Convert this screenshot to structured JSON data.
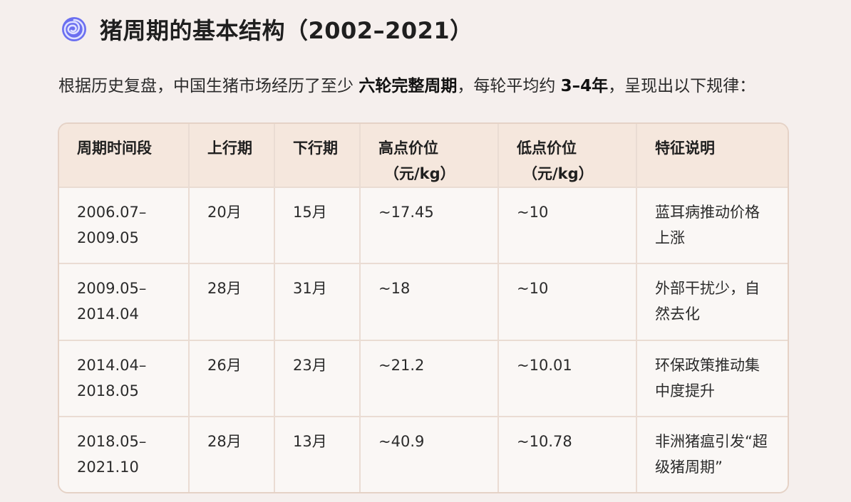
{
  "heading": {
    "icon": "spiral-icon",
    "title": "猪周期的基本结构（2002–2021）"
  },
  "intro": {
    "part1": "根据历史复盘，中国生猪市场经历了至少 ",
    "bold1": "六轮完整周期",
    "part2": "，每轮平均约 ",
    "bold2": "3–4年",
    "part3": "，呈现出以下规律："
  },
  "table": {
    "headers": {
      "period": "周期时间段",
      "up": "上行期",
      "down": "下行期",
      "high": "高点价位",
      "high_unit": "（元/kg）",
      "low": "低点价位",
      "low_unit": "（元/kg）",
      "feature": "特征说明"
    },
    "rows": [
      {
        "period": "2006.07–2009.05",
        "up": "20月",
        "down": "15月",
        "high": "~17.45",
        "low": "~10",
        "feature": "蓝耳病推动价格上涨"
      },
      {
        "period": "2009.05–2014.04",
        "up": "28月",
        "down": "31月",
        "high": "~18",
        "low": "~10",
        "feature": "外部干扰少，自然去化"
      },
      {
        "period": "2014.04–2018.05",
        "up": "26月",
        "down": "23月",
        "high": "~21.2",
        "low": "~10.01",
        "feature": "环保政策推动集中度提升"
      },
      {
        "period": "2018.05–2021.10",
        "up": "28月",
        "down": "13月",
        "high": "~40.9",
        "low": "~10.78",
        "feature": "非洲猪瘟引发“超级猪周期”"
      }
    ]
  },
  "colors": {
    "header_bg": "#f5e7dd",
    "row_bg": "#faf7f5",
    "page_bg": "#f5efed",
    "border": "#e5d2c6",
    "icon": "#5b5fe6"
  }
}
